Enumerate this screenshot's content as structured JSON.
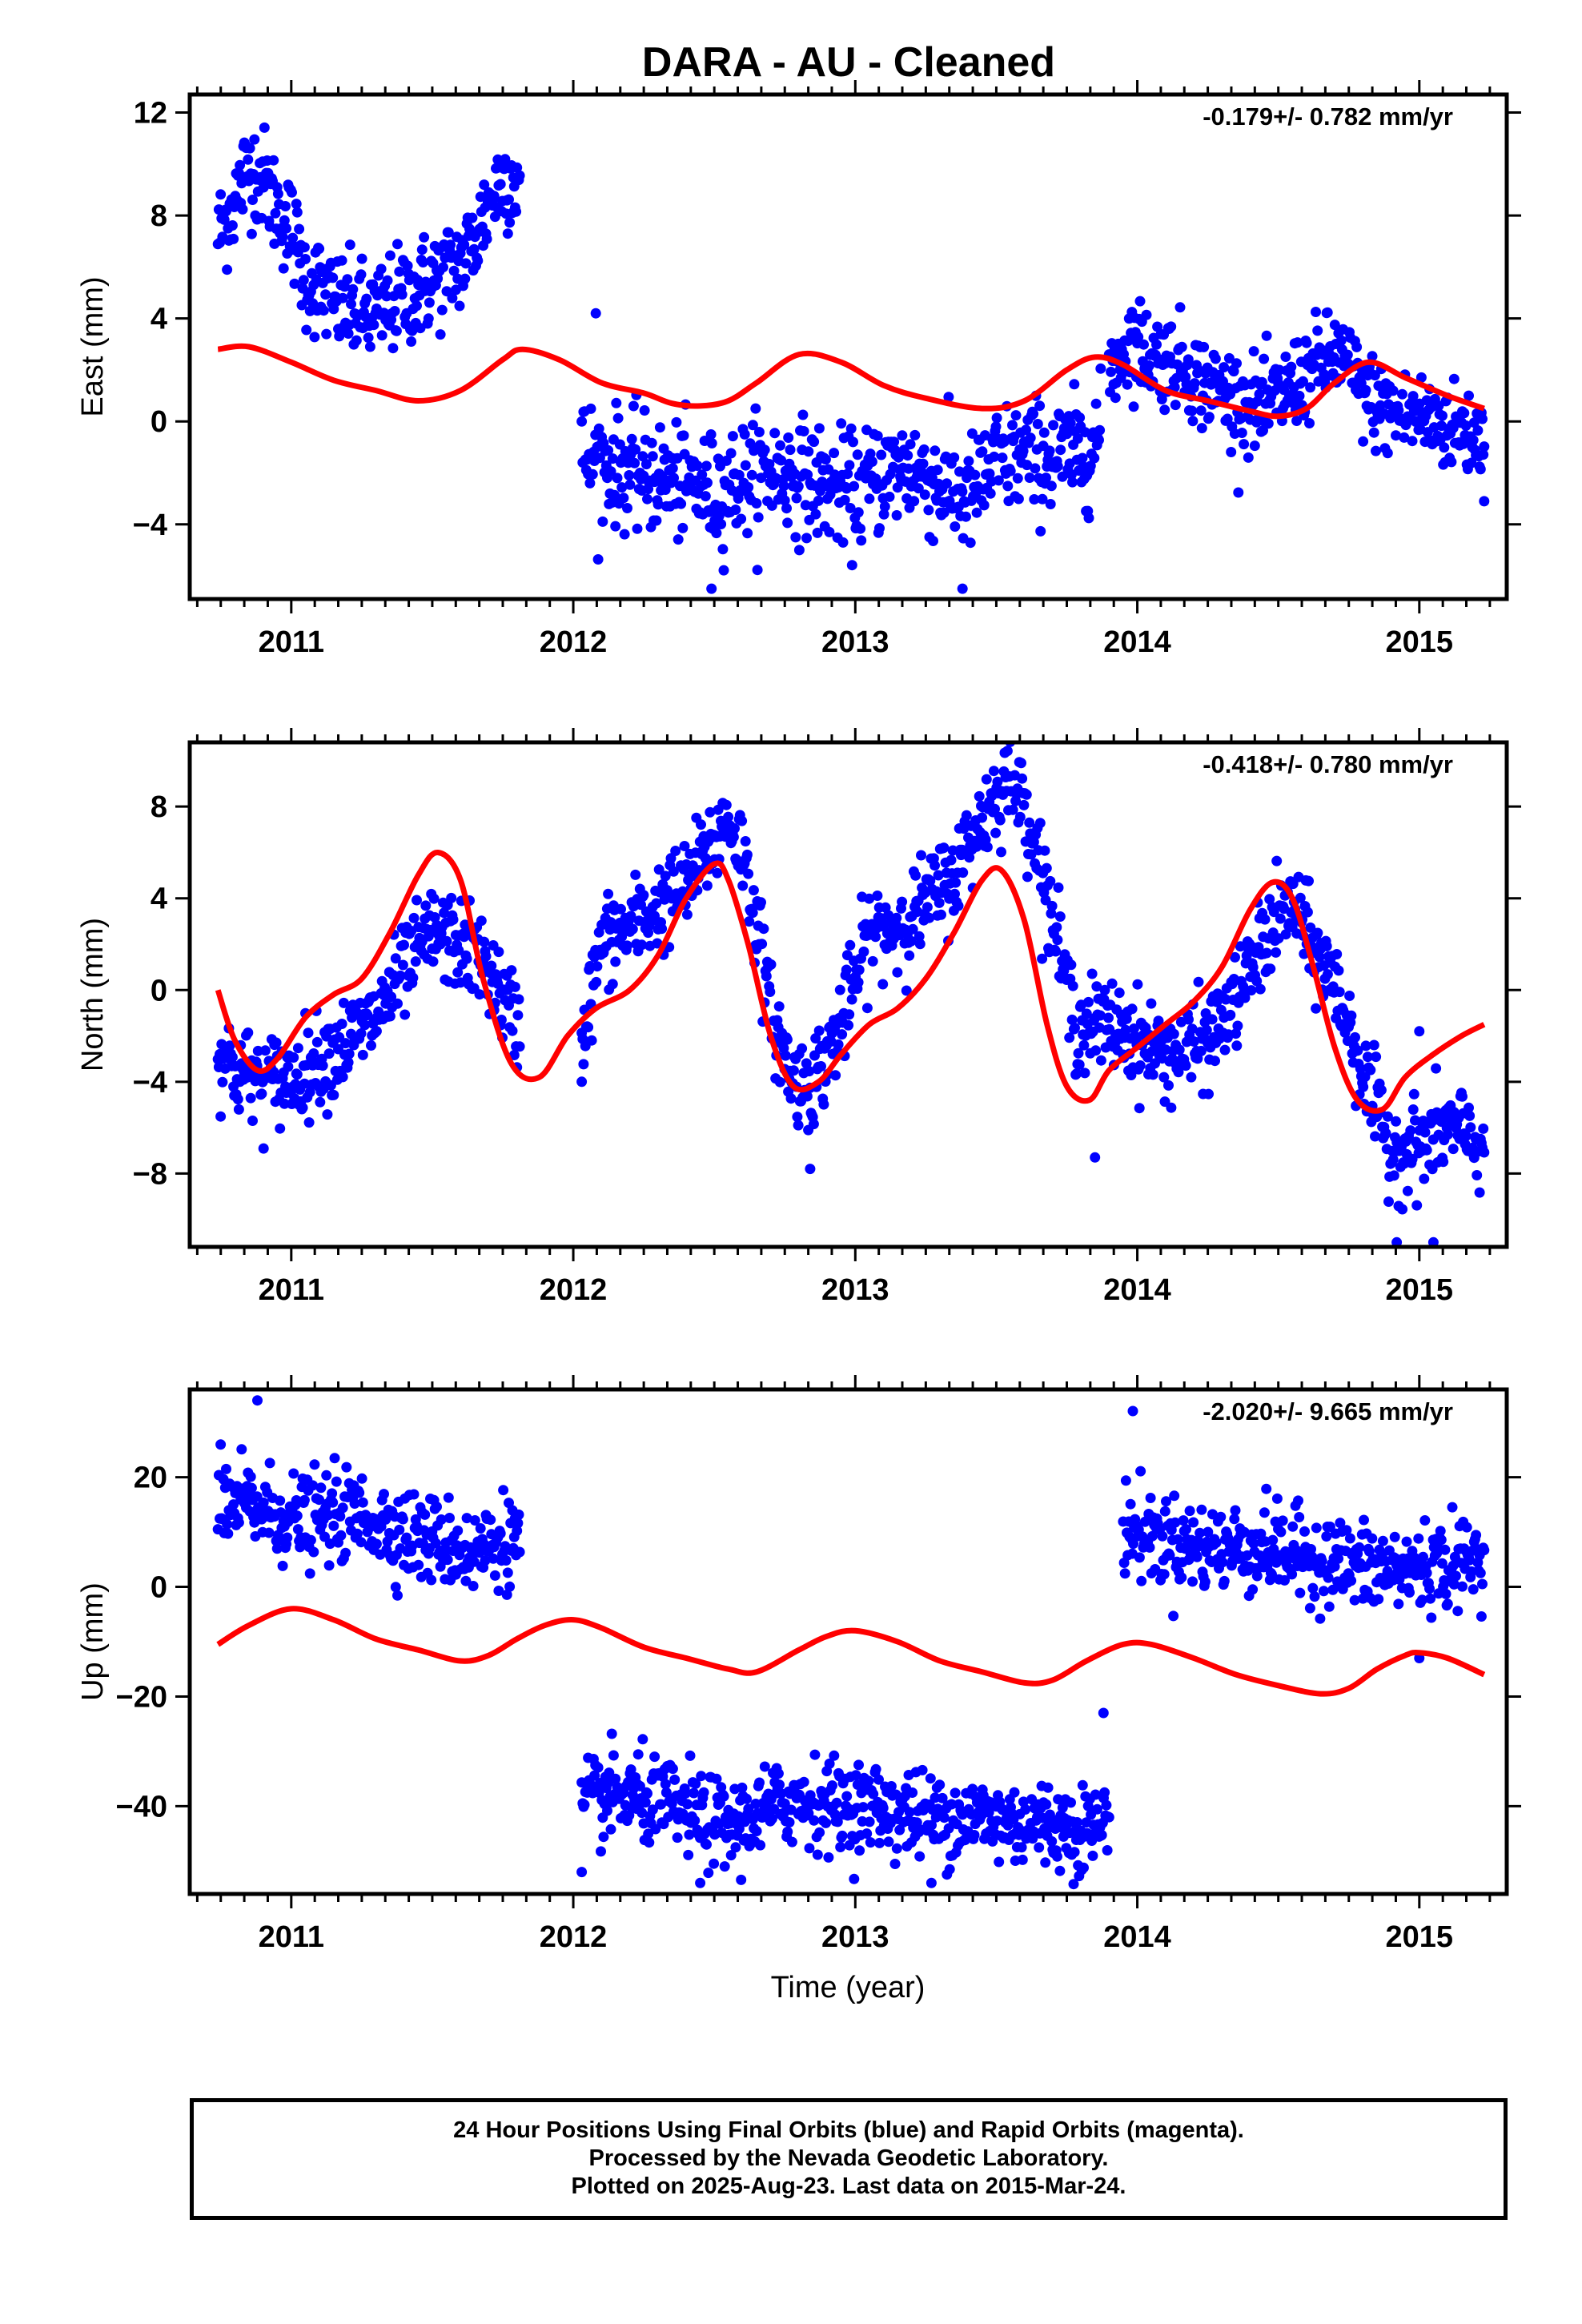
{
  "title": "DARA  - AU - Cleaned",
  "xlabel": "Time (year)",
  "footer": {
    "line1": "24 Hour Positions Using Final Orbits (blue) and Rapid Orbits (magenta).",
    "line2": "Processed by the Nevada Geodetic Laboratory.",
    "line3": "Plotted on 2025-Aug-23. Last data on 2015-Mar-24."
  },
  "colors": {
    "points": "#0000ff",
    "model": "#ff0000",
    "axes": "#000000"
  },
  "chart_data": [
    {
      "type": "scatter",
      "name": "east",
      "ylabel": "East (mm)",
      "rate_label": "-0.179+/- 0.782 mm/yr",
      "xlim": [
        2010.64,
        2015.31
      ],
      "ylim": [
        -6.9,
        12.7
      ],
      "xticks": [
        2011,
        2012,
        2013,
        2014,
        2015
      ],
      "yticks": [
        -4,
        0,
        4,
        8,
        12
      ],
      "grid": false,
      "segments": [
        {
          "x": [
            2010.74,
            2010.8,
            2010.85,
            2010.9,
            2010.95,
            2011.0,
            2011.05,
            2011.1,
            2011.15,
            2011.2,
            2011.25,
            2011.3,
            2011.35,
            2011.4,
            2011.45,
            2011.5,
            2011.55,
            2011.6,
            2011.65,
            2011.7,
            2011.75,
            2011.81
          ],
          "y": [
            7.2,
            8.6,
            10.0,
            9.5,
            8.3,
            7.5,
            5.6,
            5.2,
            4.6,
            4.4,
            4.2,
            4.1,
            4.5,
            4.9,
            5.1,
            5.5,
            5.8,
            6.2,
            7.0,
            8.5,
            9.5,
            9.4
          ],
          "noise": 1.0
        },
        {
          "x": [
            2012.03,
            2012.1,
            2012.2,
            2012.3,
            2012.4,
            2012.5,
            2012.6,
            2012.7,
            2012.8,
            2012.9,
            2013.0,
            2013.1,
            2013.2,
            2013.3,
            2013.4,
            2013.5,
            2013.6,
            2013.7,
            2013.8,
            2013.87
          ],
          "y": [
            -1.2,
            -1.6,
            -1.9,
            -2.2,
            -2.4,
            -2.8,
            -2.2,
            -1.9,
            -2.1,
            -2.5,
            -2.8,
            -2.0,
            -1.8,
            -2.5,
            -3.0,
            -1.6,
            -1.3,
            -1.4,
            -1.2,
            -0.6
          ],
          "noise": 1.1
        },
        {
          "x": [
            2013.9,
            2013.98,
            2014.05,
            2014.15,
            2014.25,
            2014.35,
            2014.45,
            2014.55,
            2014.65,
            2014.72,
            2014.8,
            2014.9,
            2015.0,
            2015.1,
            2015.2,
            2015.23
          ],
          "y": [
            2.0,
            3.2,
            2.6,
            2.3,
            1.4,
            0.9,
            0.4,
            1.4,
            2.3,
            2.6,
            1.1,
            0.3,
            0.2,
            -0.2,
            -0.5,
            -0.8
          ],
          "noise": 0.9
        }
      ],
      "outliers": [
        {
          "x": 2012.08,
          "y": 4.2
        },
        {
          "x": 2012.49,
          "y": -6.5
        },
        {
          "x": 2013.38,
          "y": -6.5
        },
        {
          "x": 2015.23,
          "y": -3.1
        }
      ],
      "model": {
        "x": [
          2010.74,
          2010.85,
          2011.0,
          2011.15,
          2011.3,
          2011.45,
          2011.6,
          2011.75,
          2011.82,
          2011.95,
          2012.1,
          2012.25,
          2012.35,
          2012.45,
          2012.55,
          2012.65,
          2012.8,
          2012.95,
          2013.1,
          2013.25,
          2013.45,
          2013.6,
          2013.75,
          2013.85,
          2013.95,
          2014.1,
          2014.25,
          2014.4,
          2014.5,
          2014.6,
          2014.7,
          2014.82,
          2014.95,
          2015.1,
          2015.23
        ],
        "y": [
          2.8,
          2.9,
          2.3,
          1.6,
          1.2,
          0.8,
          1.2,
          2.4,
          2.8,
          2.4,
          1.5,
          1.1,
          0.7,
          0.6,
          0.8,
          1.5,
          2.6,
          2.3,
          1.4,
          0.9,
          0.5,
          0.8,
          2.0,
          2.5,
          2.2,
          1.2,
          0.8,
          0.4,
          0.2,
          0.5,
          1.5,
          2.3,
          1.7,
          1.0,
          0.5
        ]
      }
    },
    {
      "type": "scatter",
      "name": "north",
      "ylabel": "North (mm)",
      "rate_label": "-0.418+/- 0.780 mm/yr",
      "xlim": [
        2010.64,
        2015.31
      ],
      "ylim": [
        -11.2,
        10.8
      ],
      "xticks": [
        2011,
        2012,
        2013,
        2014,
        2015
      ],
      "yticks": [
        -8,
        -4,
        0,
        4,
        8
      ],
      "grid": false,
      "segments": [
        {
          "x": [
            2010.74,
            2010.8,
            2010.9,
            2011.0,
            2011.1,
            2011.2,
            2011.3,
            2011.4,
            2011.5,
            2011.6,
            2011.7,
            2011.75,
            2011.81
          ],
          "y": [
            -2.5,
            -3.5,
            -4.0,
            -3.8,
            -3.0,
            -2.3,
            -1.2,
            0.8,
            2.5,
            2.0,
            1.0,
            -0.5,
            -1.6
          ],
          "noise": 1.0
        },
        {
          "x": [
            2012.03,
            2012.1,
            2012.2,
            2012.3,
            2012.4,
            2012.5,
            2012.55,
            2012.6,
            2012.65,
            2012.7,
            2012.78,
            2012.85,
            2012.95,
            2013.05,
            2013.15,
            2013.25,
            2013.35,
            2013.45,
            2013.55,
            2013.62,
            2013.7,
            2013.78,
            2013.85,
            2013.95,
            2014.05,
            2014.15,
            2014.25,
            2014.35,
            2014.45,
            2014.55,
            2014.62,
            2014.68,
            2014.75,
            2014.82,
            2014.9,
            2015.0,
            2015.1,
            2015.23
          ],
          "y": [
            -2.0,
            2.0,
            2.7,
            3.6,
            4.5,
            6.5,
            7.5,
            6.0,
            3.0,
            -1.0,
            -4.0,
            -4.0,
            -1.5,
            2.5,
            2.8,
            3.8,
            5.0,
            7.5,
            9.5,
            7.5,
            3.0,
            -1.5,
            -1.5,
            -1.7,
            -2.6,
            -2.8,
            -2.2,
            -0.5,
            2.2,
            3.8,
            1.8,
            0.8,
            -1.5,
            -4.5,
            -7.0,
            -6.8,
            -6.0,
            -6.8
          ],
          "noise": 1.0
        }
      ],
      "outliers": [
        {
          "x": 2012.03,
          "y": -4.0
        },
        {
          "x": 2012.84,
          "y": -7.8
        },
        {
          "x": 2013.85,
          "y": -7.3
        },
        {
          "x": 2014.92,
          "y": -11.0
        },
        {
          "x": 2015.05,
          "y": -11.0
        },
        {
          "x": 2015.0,
          "y": -1.8
        }
      ],
      "model": {
        "x": [
          2010.74,
          2010.8,
          2010.88,
          2010.95,
          2011.05,
          2011.15,
          2011.25,
          2011.35,
          2011.45,
          2011.52,
          2011.6,
          2011.68,
          2011.78,
          2011.88,
          2011.98,
          2012.08,
          2012.2,
          2012.3,
          2012.4,
          2012.5,
          2012.55,
          2012.62,
          2012.7,
          2012.78,
          2012.87,
          2012.95,
          2013.05,
          2013.15,
          2013.25,
          2013.35,
          2013.45,
          2013.52,
          2013.6,
          2013.68,
          2013.75,
          2013.83,
          2013.9,
          2014.0,
          2014.1,
          2014.2,
          2014.3,
          2014.4,
          2014.48,
          2014.55,
          2014.62,
          2014.7,
          2014.78,
          2014.87,
          2014.95,
          2015.05,
          2015.15,
          2015.23
        ],
        "y": [
          0.0,
          -2.2,
          -3.5,
          -3.0,
          -1.2,
          -0.2,
          0.5,
          2.5,
          5.0,
          6.0,
          4.8,
          0.5,
          -3.2,
          -3.8,
          -2.0,
          -0.8,
          0.0,
          1.5,
          4.0,
          5.5,
          4.8,
          2.0,
          -2.0,
          -4.2,
          -4.0,
          -2.8,
          -1.5,
          -0.8,
          0.5,
          2.5,
          4.8,
          5.2,
          3.0,
          -1.5,
          -4.2,
          -4.8,
          -3.5,
          -2.5,
          -1.5,
          -0.5,
          1.0,
          3.5,
          4.7,
          4.0,
          1.2,
          -2.5,
          -4.8,
          -5.2,
          -3.8,
          -2.8,
          -2.0,
          -1.5
        ]
      }
    },
    {
      "type": "scatter",
      "name": "up",
      "ylabel": "Up (mm)",
      "rate_label": "-2.020+/- 9.665 mm/yr",
      "xlim": [
        2010.64,
        2015.31
      ],
      "ylim": [
        -56,
        36
      ],
      "xticks": [
        2011,
        2012,
        2013,
        2014,
        2015
      ],
      "yticks": [
        -40,
        -20,
        0,
        20
      ],
      "grid": false,
      "segments": [
        {
          "x": [
            2010.74,
            2010.85,
            2010.95,
            2011.05,
            2011.15,
            2011.25,
            2011.35,
            2011.45,
            2011.55,
            2011.65,
            2011.75,
            2011.81
          ],
          "y": [
            14.0,
            15.0,
            13.0,
            12.0,
            13.0,
            13.0,
            11.0,
            9.0,
            8.0,
            6.0,
            9.0,
            8.0
          ],
          "noise": 4.0
        },
        {
          "x": [
            2012.03,
            2012.15,
            2012.25,
            2012.35,
            2012.45,
            2012.55,
            2012.65,
            2012.75,
            2012.85,
            2012.95,
            2013.05,
            2013.15,
            2013.25,
            2013.35,
            2013.45,
            2013.55,
            2013.65,
            2013.75,
            2013.85,
            2013.9
          ],
          "y": [
            -40.0,
            -38.0,
            -39.0,
            -40.0,
            -42.0,
            -44.0,
            -42.0,
            -39.0,
            -39.0,
            -40.0,
            -40.0,
            -41.0,
            -42.0,
            -42.0,
            -42.0,
            -43.0,
            -43.0,
            -44.0,
            -44.0,
            -42.0
          ],
          "noise": 4.0
        },
        {
          "x": [
            2013.95,
            2014.05,
            2014.15,
            2014.25,
            2014.35,
            2014.45,
            2014.55,
            2014.65,
            2014.75,
            2014.85,
            2014.95,
            2015.05,
            2015.15,
            2015.23
          ],
          "y": [
            11.0,
            9.0,
            8.0,
            7.0,
            7.0,
            7.0,
            6.0,
            5.0,
            4.0,
            3.0,
            3.0,
            4.0,
            4.0,
            6.0
          ],
          "noise": 4.0
        }
      ],
      "outliers": [
        {
          "x": 2010.88,
          "y": 34.0
        },
        {
          "x": 2012.03,
          "y": -52.0
        },
        {
          "x": 2012.45,
          "y": -54.0
        },
        {
          "x": 2013.27,
          "y": -54.0
        },
        {
          "x": 2013.88,
          "y": -23.0
        },
        {
          "x": 2015.0,
          "y": -13.0
        }
      ],
      "model": {
        "x": [
          2010.74,
          2010.85,
          2011.0,
          2011.15,
          2011.3,
          2011.45,
          2011.6,
          2011.7,
          2011.8,
          2011.9,
          2012.0,
          2012.1,
          2012.25,
          2012.4,
          2012.55,
          2012.65,
          2012.8,
          2012.9,
          2013.0,
          2013.15,
          2013.3,
          2013.45,
          2013.6,
          2013.7,
          2013.82,
          2013.95,
          2014.05,
          2014.2,
          2014.35,
          2014.5,
          2014.65,
          2014.75,
          2014.85,
          2014.95,
          2015.0,
          2015.1,
          2015.23
        ],
        "y": [
          -10.5,
          -7.0,
          -4.0,
          -6.0,
          -9.5,
          -11.5,
          -13.5,
          -12.5,
          -9.5,
          -7.0,
          -6.0,
          -7.5,
          -11.0,
          -13.0,
          -15.0,
          -15.5,
          -11.5,
          -9.0,
          -8.0,
          -10.0,
          -13.5,
          -15.5,
          -17.5,
          -17.0,
          -13.5,
          -10.5,
          -10.5,
          -13.0,
          -16.0,
          -18.0,
          -19.5,
          -18.5,
          -15.0,
          -12.5,
          -12.0,
          -13.0,
          -16.0
        ]
      }
    }
  ]
}
